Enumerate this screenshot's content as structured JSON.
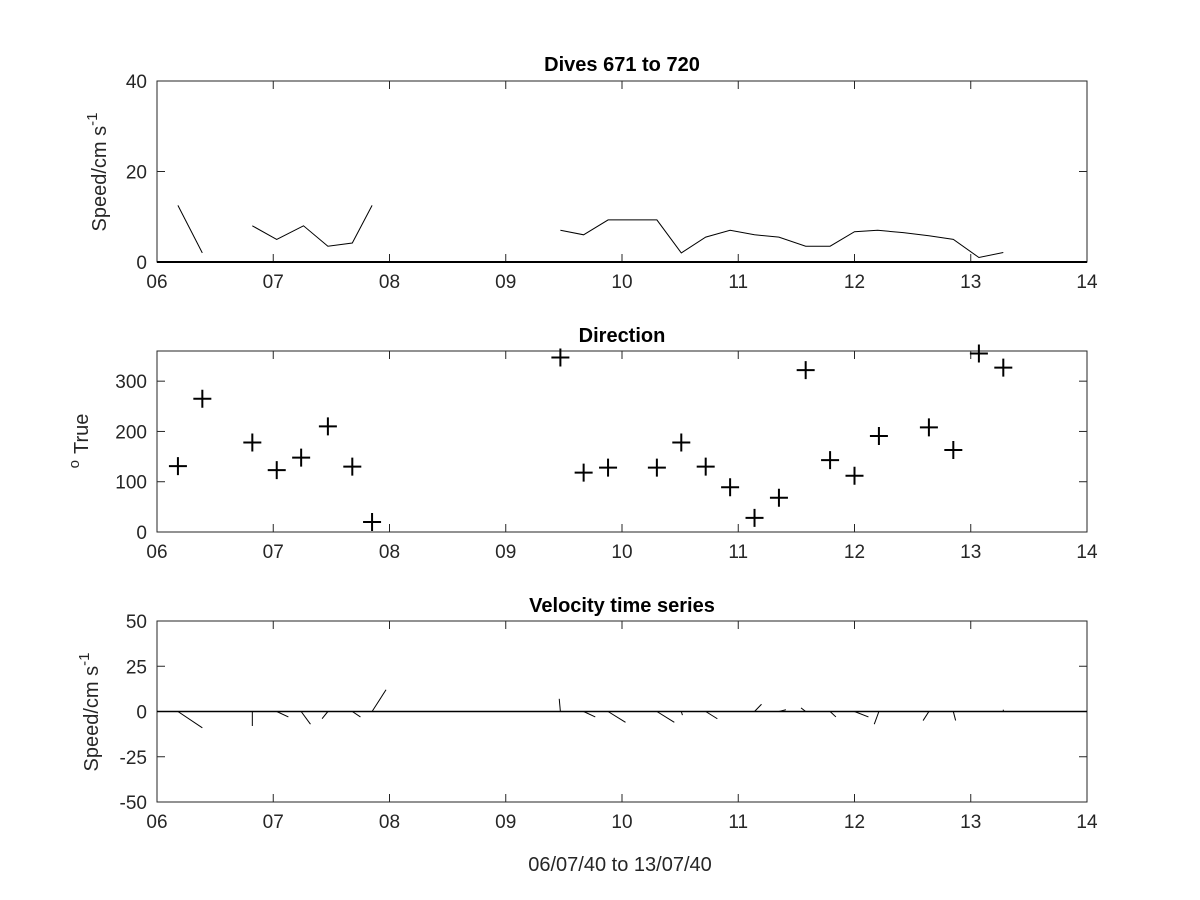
{
  "colors": {
    "background": "#ffffff",
    "axes": "#262626",
    "series": "#000000"
  },
  "chart_data": [
    {
      "type": "line",
      "title": "Dives 671 to 720",
      "ylabel": {
        "text": "Speed/cm s",
        "superscript": "-1"
      },
      "xlim": [
        6,
        14
      ],
      "ylim": [
        0,
        40
      ],
      "xticks": [
        6,
        7,
        8,
        9,
        10,
        11,
        12,
        13,
        14
      ],
      "xtick_labels": [
        "06",
        "07",
        "08",
        "09",
        "10",
        "11",
        "12",
        "13",
        "14"
      ],
      "yticks": [
        0,
        20,
        40
      ],
      "ytick_labels": [
        "0",
        "20",
        "40"
      ],
      "series": [
        {
          "segments": [
            {
              "x": [
                6.18,
                6.39
              ],
              "y": [
                12.5,
                2
              ]
            },
            {
              "x": [
                6.82,
                7.03,
                7.26,
                7.47,
                7.68,
                7.85
              ],
              "y": [
                8,
                5,
                8,
                3.5,
                4.2,
                12.5
              ]
            },
            {
              "x": [
                9.47,
                9.67,
                9.88,
                10.3,
                10.51,
                10.72,
                10.93,
                11.14,
                11.35,
                11.58,
                11.79,
                12.0,
                12.2,
                12.42,
                12.64,
                12.85,
                13.07,
                13.28
              ],
              "y": [
                7,
                6,
                9.3,
                9.3,
                2,
                5.5,
                7,
                6,
                5.5,
                3.5,
                3.5,
                6.7,
                7,
                6.5,
                5.8,
                5,
                1,
                2.1
              ]
            }
          ]
        }
      ]
    },
    {
      "type": "scatter",
      "title": "Direction",
      "ylabel": {
        "prefix": "o",
        "text": "True"
      },
      "marker": "+",
      "xlim": [
        6,
        14
      ],
      "ylim": [
        0,
        360
      ],
      "xticks": [
        6,
        7,
        8,
        9,
        10,
        11,
        12,
        13,
        14
      ],
      "xtick_labels": [
        "06",
        "07",
        "08",
        "09",
        "10",
        "11",
        "12",
        "13",
        "14"
      ],
      "yticks": [
        0,
        100,
        200,
        300
      ],
      "ytick_labels": [
        "0",
        "100",
        "200",
        "300"
      ],
      "x": [
        6.18,
        6.39,
        6.82,
        7.03,
        7.24,
        7.47,
        7.68,
        7.85,
        9.47,
        9.67,
        9.88,
        10.3,
        10.51,
        10.72,
        10.93,
        11.14,
        11.35,
        11.58,
        11.79,
        12.0,
        12.21,
        12.64,
        12.85,
        13.07,
        13.28
      ],
      "y": [
        131,
        265,
        178,
        123,
        148,
        210,
        130,
        20,
        347,
        118,
        128,
        128,
        178,
        130,
        89,
        28,
        68,
        322,
        143,
        112,
        191,
        208,
        163,
        355,
        327
      ]
    },
    {
      "type": "line",
      "title": "Velocity time series",
      "xlabel": "06/07/40 to 13/07/40",
      "ylabel": {
        "text": "Speed/cm s",
        "superscript": "-1"
      },
      "xlim": [
        6,
        14
      ],
      "ylim": [
        -50,
        50
      ],
      "xticks": [
        6,
        7,
        8,
        9,
        10,
        11,
        12,
        13,
        14
      ],
      "xtick_labels": [
        "06",
        "07",
        "08",
        "09",
        "10",
        "11",
        "12",
        "13",
        "14"
      ],
      "yticks": [
        -50,
        -25,
        0,
        25,
        50
      ],
      "ytick_labels": [
        "-50",
        "-25",
        "0",
        "25",
        "50"
      ],
      "baseline": 0,
      "sticks": [
        {
          "x": 6.18,
          "dx": 0.21,
          "dy": -9
        },
        {
          "x": 6.82,
          "dx": 0,
          "dy": -8
        },
        {
          "x": 7.03,
          "dx": 0.1,
          "dy": -3
        },
        {
          "x": 7.24,
          "dx": 0.08,
          "dy": -7
        },
        {
          "x": 7.47,
          "dx": -0.05,
          "dy": -4
        },
        {
          "x": 7.68,
          "dx": 0.07,
          "dy": -3
        },
        {
          "x": 7.85,
          "dx": 0.12,
          "dy": 12
        },
        {
          "x": 9.47,
          "dx": -0.01,
          "dy": 7
        },
        {
          "x": 9.67,
          "dx": 0.1,
          "dy": -3
        },
        {
          "x": 9.88,
          "dx": 0.15,
          "dy": -6
        },
        {
          "x": 10.3,
          "dx": 0.15,
          "dy": -6
        },
        {
          "x": 10.51,
          "dx": 0.01,
          "dy": -2
        },
        {
          "x": 10.72,
          "dx": 0.1,
          "dy": -4
        },
        {
          "x": 11.14,
          "dx": 0.06,
          "dy": 4
        },
        {
          "x": 11.35,
          "dx": 0.06,
          "dy": 1
        },
        {
          "x": 11.58,
          "dx": -0.04,
          "dy": 2
        },
        {
          "x": 11.79,
          "dx": 0.05,
          "dy": -3
        },
        {
          "x": 12.0,
          "dx": 0.12,
          "dy": -3
        },
        {
          "x": 12.21,
          "dx": -0.04,
          "dy": -7
        },
        {
          "x": 12.64,
          "dx": -0.05,
          "dy": -5
        },
        {
          "x": 12.85,
          "dx": 0.02,
          "dy": -5
        },
        {
          "x": 13.28,
          "dx": 0,
          "dy": 1
        }
      ]
    }
  ]
}
